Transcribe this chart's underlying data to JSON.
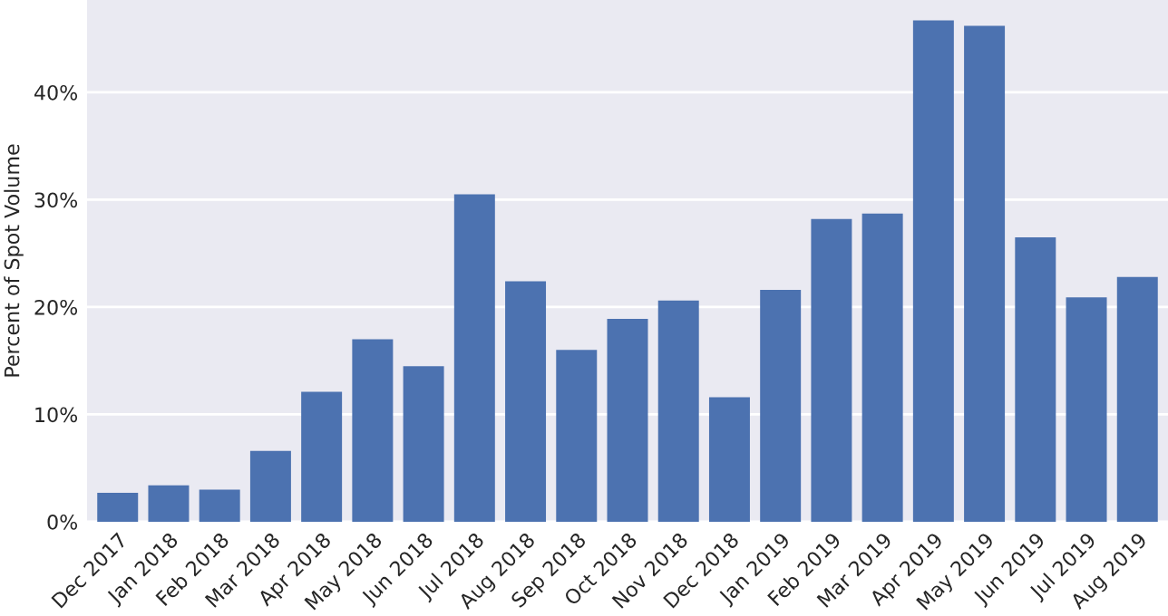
{
  "chart_data": {
    "type": "bar",
    "ylabel": "Percent of Spot Volume",
    "categories": [
      "Dec 2017",
      "Jan 2018",
      "Feb 2018",
      "Mar 2018",
      "Apr 2018",
      "May 2018",
      "Jun 2018",
      "Jul 2018",
      "Aug 2018",
      "Sep 2018",
      "Oct 2018",
      "Nov 2018",
      "Dec 2018",
      "Jan 2019",
      "Feb 2019",
      "Mar 2019",
      "Apr 2019",
      "May 2019",
      "Jun 2019",
      "Jul 2019",
      "Aug 2019"
    ],
    "values": [
      2.7,
      3.4,
      3.0,
      6.6,
      12.1,
      17.0,
      14.5,
      30.5,
      22.4,
      16.0,
      18.9,
      20.6,
      11.6,
      21.6,
      28.2,
      28.7,
      46.7,
      46.2,
      26.5,
      20.9,
      22.8
    ],
    "color": "#4c72b0",
    "ylim": [
      0,
      48.6
    ],
    "yticks": [
      {
        "value": 0,
        "label": "0%"
      },
      {
        "value": 10,
        "label": "10%"
      },
      {
        "value": 20,
        "label": "20%"
      },
      {
        "value": 30,
        "label": "30%"
      },
      {
        "value": 40,
        "label": "40%"
      }
    ],
    "grid": "y"
  }
}
